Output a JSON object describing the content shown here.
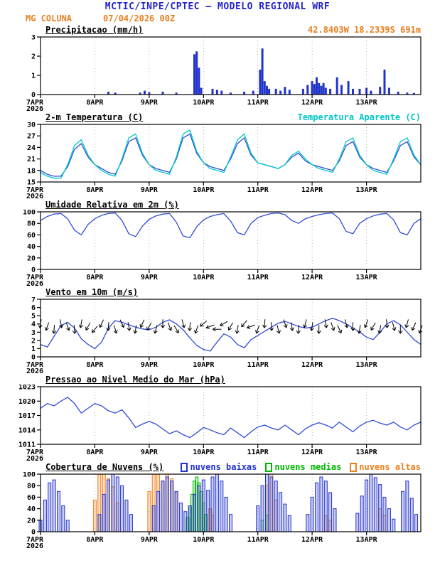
{
  "header": {
    "title_line": "MCTIC/INPE/CPTEC — MODELO REGIONAL WRF",
    "station": "MG COLUNA",
    "run": "07/04/2026 00Z",
    "coords": "42.8403W 18.2339S 691m"
  },
  "time_axis": {
    "hours_span": 168,
    "tick_hours": [
      0,
      24,
      48,
      72,
      96,
      120,
      144
    ],
    "tick_labels": [
      "7APR",
      "8APR",
      "9APR",
      "10APR",
      "11APR",
      "12APR",
      "13APR"
    ],
    "year_label": "2026"
  },
  "chart_data": [
    {
      "id": "precip",
      "type": "bar",
      "title": "Precipitacao (mm/h)",
      "ylim": [
        0,
        3
      ],
      "yticks": [
        0,
        1,
        2,
        3
      ],
      "color": "#2233cc",
      "bars": [
        [
          30,
          0.15
        ],
        [
          33,
          0.1
        ],
        [
          44,
          0.1
        ],
        [
          46,
          0.2
        ],
        [
          48,
          0.12
        ],
        [
          54,
          0.15
        ],
        [
          60,
          0.1
        ],
        [
          68,
          2.1
        ],
        [
          69,
          2.25
        ],
        [
          70,
          1.4
        ],
        [
          71,
          0.35
        ],
        [
          76,
          0.3
        ],
        [
          78,
          0.25
        ],
        [
          80,
          0.2
        ],
        [
          84,
          0.1
        ],
        [
          90,
          0.15
        ],
        [
          94,
          0.2
        ],
        [
          97,
          1.3
        ],
        [
          98,
          2.4
        ],
        [
          99,
          0.7
        ],
        [
          100,
          0.45
        ],
        [
          101,
          0.3
        ],
        [
          104,
          0.3
        ],
        [
          106,
          0.2
        ],
        [
          108,
          0.4
        ],
        [
          110,
          0.25
        ],
        [
          116,
          0.3
        ],
        [
          118,
          0.5
        ],
        [
          120,
          0.7
        ],
        [
          121,
          0.55
        ],
        [
          122,
          0.9
        ],
        [
          123,
          0.6
        ],
        [
          124,
          0.45
        ],
        [
          125,
          0.6
        ],
        [
          126,
          0.35
        ],
        [
          128,
          0.3
        ],
        [
          131,
          0.9
        ],
        [
          133,
          0.5
        ],
        [
          136,
          0.7
        ],
        [
          138,
          0.3
        ],
        [
          141,
          0.3
        ],
        [
          144,
          0.35
        ],
        [
          146,
          0.2
        ],
        [
          150,
          0.4
        ],
        [
          152,
          1.3
        ],
        [
          154,
          0.35
        ],
        [
          158,
          0.15
        ],
        [
          162,
          0.1
        ],
        [
          165,
          0.08
        ]
      ]
    },
    {
      "id": "temp",
      "type": "line",
      "title": "2-m Temperatura (C)",
      "ylim": [
        15,
        30
      ],
      "yticks": [
        15,
        18,
        21,
        24,
        27,
        30
      ],
      "series": [
        {
          "name": "2-m Temperatura (C)",
          "color": "#2f4bd6",
          "x_step_h": 3,
          "values": [
            18,
            17,
            16.5,
            16.5,
            19,
            23.5,
            25,
            21.5,
            19.5,
            18.5,
            17.5,
            17,
            20.5,
            25.5,
            26.5,
            22,
            19.5,
            18.5,
            18,
            17.5,
            21,
            26.5,
            27.5,
            22.5,
            20,
            19,
            18.5,
            18,
            21,
            25,
            26.5,
            22,
            20,
            19.5,
            19,
            18.5,
            19.5,
            21.5,
            22.5,
            20.5,
            19.5,
            19,
            18.5,
            18,
            20.5,
            24.5,
            25.5,
            21.5,
            19.5,
            18.5,
            18,
            17.5,
            20.5,
            24.5,
            25.5,
            21.5,
            19.5
          ]
        },
        {
          "name": "Temperatura Aparente (C)",
          "color": "#00c8c8",
          "x_step_h": 3,
          "values": [
            17.5,
            16.5,
            16,
            16,
            19.5,
            24.5,
            26,
            22,
            19.5,
            18,
            17,
            16.5,
            21,
            26.5,
            27.5,
            22.5,
            19.5,
            18,
            17.5,
            17,
            21.5,
            27.5,
            28.5,
            23,
            20,
            18.5,
            18,
            17.5,
            21.5,
            26,
            27.5,
            22.5,
            20,
            19.5,
            19,
            18.5,
            19.5,
            22,
            23,
            21,
            19.5,
            18.5,
            18,
            17.5,
            21,
            25.5,
            26.5,
            22,
            19.5,
            18,
            17.5,
            17,
            21,
            25.5,
            26.5,
            22,
            19.5
          ]
        }
      ]
    },
    {
      "id": "rh",
      "type": "line",
      "title": "Umidade Relativa em 2m (%)",
      "ylim": [
        0,
        100
      ],
      "yticks": [
        0,
        20,
        40,
        60,
        80,
        100
      ],
      "series": [
        {
          "name": "Umidade Relativa em 2m (%)",
          "color": "#2f4bd6",
          "x_step_h": 3,
          "values": [
            85,
            92,
            96,
            97,
            88,
            68,
            60,
            78,
            88,
            94,
            97,
            98,
            85,
            62,
            57,
            75,
            87,
            93,
            96,
            97,
            82,
            58,
            55,
            74,
            86,
            92,
            95,
            97,
            84,
            64,
            60,
            80,
            90,
            94,
            97,
            98,
            95,
            85,
            80,
            88,
            92,
            95,
            97,
            98,
            88,
            66,
            62,
            80,
            88,
            93,
            96,
            97,
            86,
            64,
            60,
            80,
            88
          ]
        }
      ]
    },
    {
      "id": "wind",
      "type": "line",
      "title": "Vento em 10m (m/s)",
      "ylim": [
        0,
        7
      ],
      "yticks": [
        0,
        1,
        2,
        3,
        4,
        5,
        6,
        7
      ],
      "series": [
        {
          "name": "Vento em 10m (m/s)",
          "color": "#2f4bd6",
          "x_step_h": 3,
          "values": [
            1.5,
            1.2,
            2.5,
            3.8,
            4.2,
            3.5,
            2.2,
            1.5,
            1.0,
            1.8,
            3.5,
            4.4,
            4.2,
            3.9,
            3.6,
            3.4,
            3.3,
            3.6,
            4.2,
            4.5,
            4.0,
            3.3,
            2.3,
            1.4,
            0.9,
            0.7,
            1.8,
            2.8,
            2.4,
            1.5,
            1.1,
            2.1,
            2.6,
            3.1,
            3.6,
            4.1,
            4.3,
            4.0,
            3.7,
            3.5,
            3.6,
            4.0,
            4.4,
            4.7,
            4.4,
            4.0,
            3.5,
            3.0,
            2.4,
            2.1,
            3.0,
            4.0,
            4.4,
            3.9,
            3.0,
            2.1,
            1.5
          ]
        }
      ],
      "barbs": {
        "x_step_h": 3,
        "y_level": 3.7,
        "dirs": [
          100,
          110,
          95,
          80,
          70,
          85,
          100,
          120,
          130,
          115,
          95,
          75,
          65,
          80,
          100,
          115,
          120,
          105,
          90,
          70,
          60,
          75,
          95,
          110,
          140,
          160,
          180,
          150,
          120,
          100,
          130,
          160,
          110,
          95,
          85,
          75,
          70,
          80,
          95,
          105,
          100,
          90,
          80,
          70,
          65,
          75,
          90,
          100,
          110,
          120,
          100,
          85,
          75,
          90,
          105,
          115,
          110
        ]
      }
    },
    {
      "id": "pressure",
      "type": "line",
      "title": "Pressao ao Nivel Medio do Mar (hPa)",
      "ylim": [
        1011,
        1023
      ],
      "yticks": [
        1011,
        1014,
        1017,
        1020,
        1023
      ],
      "series": [
        {
          "name": "Pressao ao Nivel Medio do Mar (hPa)",
          "color": "#2f4bd6",
          "x_step_h": 3,
          "values": [
            1018.5,
            1019.5,
            1019,
            1020,
            1020.8,
            1019.5,
            1017.5,
            1018.5,
            1019.5,
            1019,
            1018,
            1017.5,
            1018.2,
            1016.5,
            1014.5,
            1015.2,
            1015.8,
            1015.2,
            1014.2,
            1013.2,
            1013.8,
            1013,
            1012.4,
            1013.4,
            1014.5,
            1014,
            1013.4,
            1013,
            1014.4,
            1013.4,
            1012.4,
            1013.6,
            1014.6,
            1015,
            1014.4,
            1014,
            1015,
            1014,
            1013,
            1014.2,
            1015,
            1015.5,
            1015,
            1014.4,
            1015.6,
            1014.6,
            1013.6,
            1014.8,
            1015.6,
            1016,
            1015.4,
            1015,
            1015.6,
            1014.6,
            1014,
            1015,
            1015.6
          ]
        }
      ]
    },
    {
      "id": "clouds",
      "type": "bar-multi",
      "title": "Cobertura de Nuvens (%)",
      "ylim": [
        0,
        100
      ],
      "yticks": [
        0,
        20,
        40,
        60,
        80,
        100
      ],
      "series": [
        {
          "name": "nuvens baixas",
          "color": "#2233cc",
          "bars": [
            [
              0,
              20
            ],
            [
              2,
              55
            ],
            [
              4,
              85
            ],
            [
              6,
              90
            ],
            [
              8,
              70
            ],
            [
              10,
              45
            ],
            [
              12,
              20
            ],
            [
              26,
              30
            ],
            [
              28,
              65
            ],
            [
              30,
              90
            ],
            [
              32,
              100
            ],
            [
              34,
              95
            ],
            [
              36,
              80
            ],
            [
              38,
              55
            ],
            [
              40,
              30
            ],
            [
              50,
              45
            ],
            [
              52,
              70
            ],
            [
              54,
              88
            ],
            [
              56,
              95
            ],
            [
              58,
              88
            ],
            [
              60,
              70
            ],
            [
              62,
              50
            ],
            [
              64,
              35
            ],
            [
              66,
              45
            ],
            [
              68,
              65
            ],
            [
              70,
              80
            ],
            [
              72,
              90
            ],
            [
              74,
              72
            ],
            [
              76,
              95
            ],
            [
              78,
              100
            ],
            [
              80,
              88
            ],
            [
              82,
              60
            ],
            [
              84,
              30
            ],
            [
              96,
              45
            ],
            [
              98,
              80
            ],
            [
              100,
              100
            ],
            [
              102,
              95
            ],
            [
              104,
              88
            ],
            [
              106,
              68
            ],
            [
              108,
              48
            ],
            [
              110,
              28
            ],
            [
              118,
              30
            ],
            [
              120,
              60
            ],
            [
              122,
              85
            ],
            [
              124,
              95
            ],
            [
              126,
              88
            ],
            [
              128,
              68
            ],
            [
              130,
              40
            ],
            [
              140,
              32
            ],
            [
              142,
              62
            ],
            [
              144,
              90
            ],
            [
              146,
              100
            ],
            [
              148,
              94
            ],
            [
              150,
              82
            ],
            [
              152,
              60
            ],
            [
              154,
              40
            ],
            [
              156,
              22
            ],
            [
              160,
              70
            ],
            [
              162,
              88
            ],
            [
              164,
              58
            ],
            [
              166,
              30
            ]
          ]
        },
        {
          "name": "nuvens medias",
          "color": "#00b800",
          "bars": [
            [
              65,
              25
            ],
            [
              66,
              45
            ],
            [
              67,
              65
            ],
            [
              68,
              88
            ],
            [
              69,
              95
            ],
            [
              70,
              85
            ],
            [
              71,
              70
            ],
            [
              72,
              50
            ],
            [
              73,
              30
            ],
            [
              98,
              20
            ],
            [
              100,
              28
            ]
          ]
        },
        {
          "name": "nuvens altas",
          "color": "#ee7f1e",
          "bars": [
            [
              24,
              55
            ],
            [
              26,
              100
            ],
            [
              28,
              100
            ],
            [
              30,
              92
            ],
            [
              32,
              78
            ],
            [
              34,
              50
            ],
            [
              48,
              70
            ],
            [
              50,
              100
            ],
            [
              52,
              100
            ],
            [
              54,
              88
            ],
            [
              56,
              100
            ],
            [
              58,
              92
            ],
            [
              60,
              68
            ],
            [
              75,
              40
            ],
            [
              76,
              28
            ],
            [
              100,
              80
            ],
            [
              102,
              100
            ],
            [
              104,
              55
            ],
            [
              126,
              28
            ],
            [
              128,
              20
            ],
            [
              150,
              40
            ],
            [
              152,
              28
            ]
          ]
        }
      ]
    }
  ]
}
